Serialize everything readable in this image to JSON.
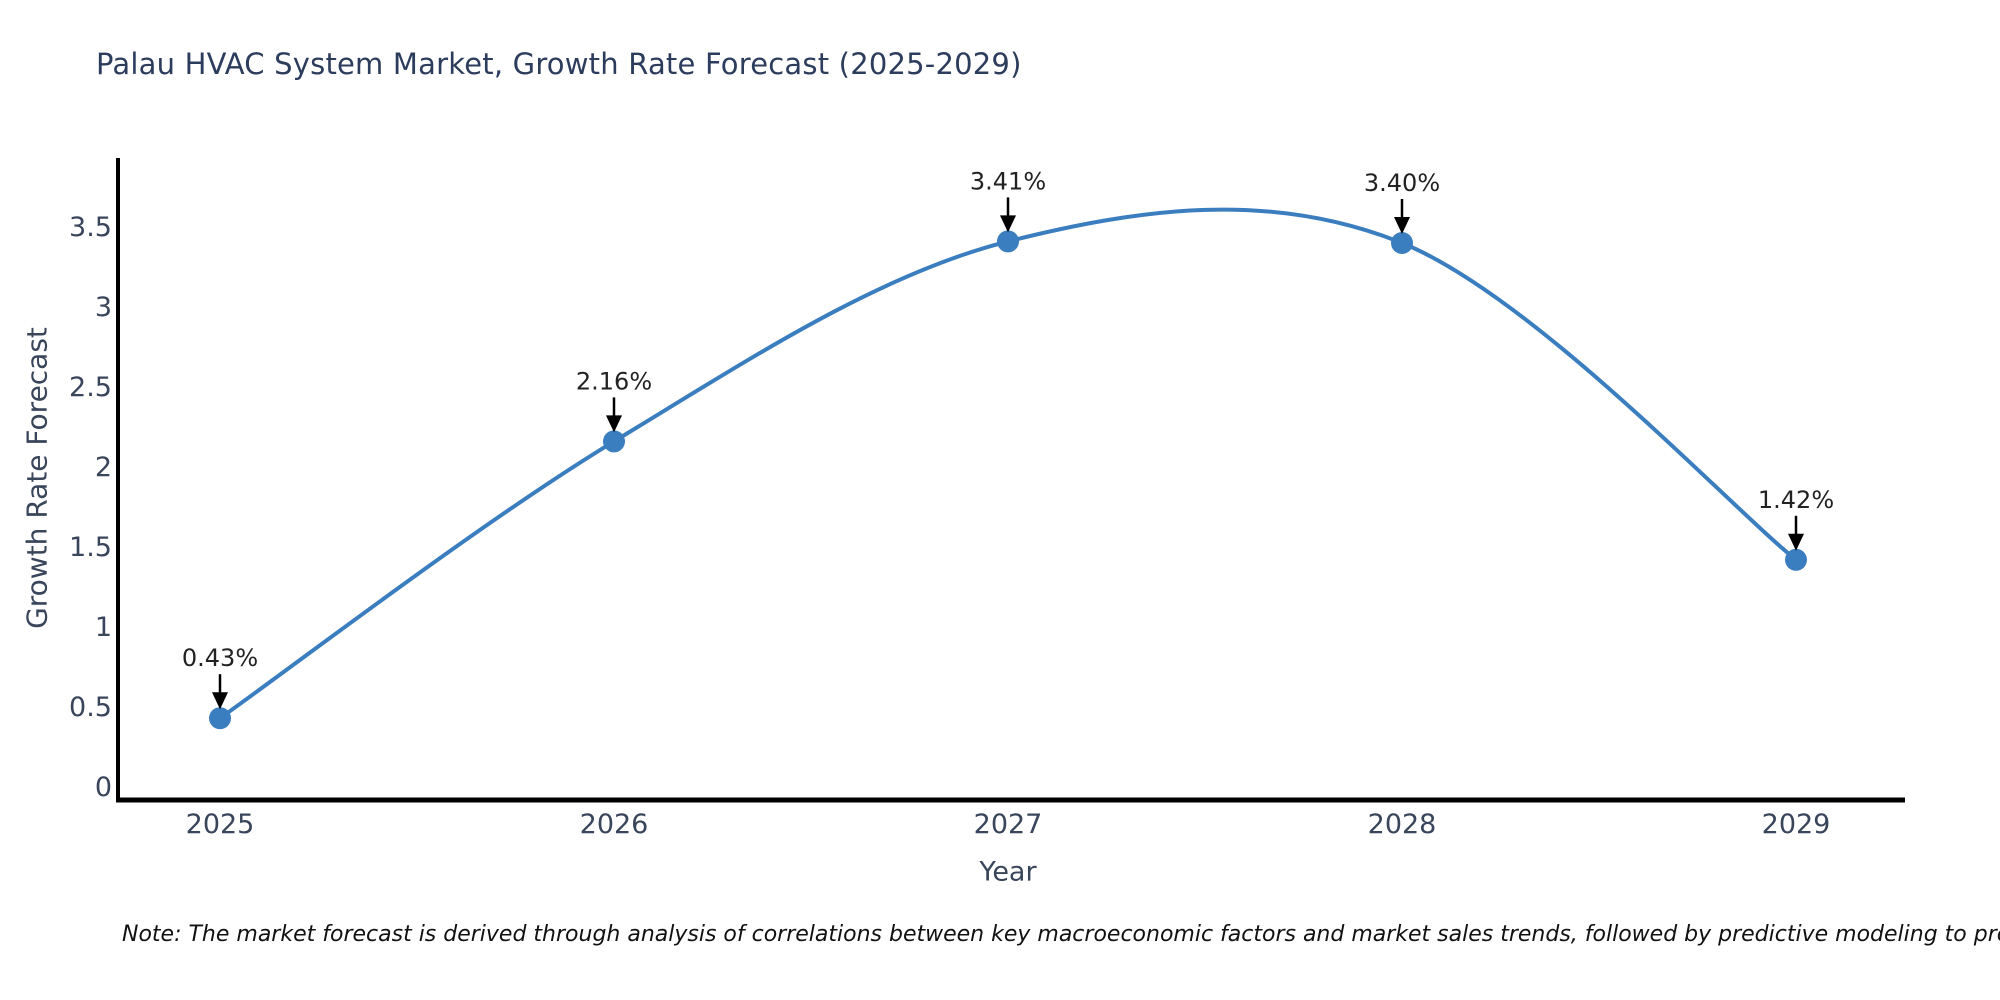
{
  "title": "Palau HVAC System Market, Growth Rate Forecast (2025-2029)",
  "note": "Note: The market forecast is derived through analysis of correlations between key macroeconomic factors and market sales trends, followed by predictive modeling to project future sales",
  "chart_data": {
    "type": "line",
    "line_shape": "spline",
    "title": "Palau HVAC System Market, Growth Rate Forecast (2025-2029)",
    "xlabel": "Year",
    "ylabel": "Growth Rate Forecast",
    "categories": [
      "2025",
      "2026",
      "2027",
      "2028",
      "2029"
    ],
    "values": [
      0.43,
      2.16,
      3.41,
      3.4,
      1.42
    ],
    "point_labels": [
      "0.43%",
      "2.16%",
      "3.41%",
      "3.40%",
      "1.42%"
    ],
    "yticks": [
      0,
      0.5,
      1,
      1.5,
      2,
      2.5,
      3,
      3.5
    ],
    "ytick_labels": [
      "0",
      "0.5",
      "1",
      "1.5",
      "2",
      "2.5",
      "3",
      "3.5"
    ],
    "ylim": [
      0,
      3.7
    ],
    "grid": false,
    "legend": "none",
    "colors": {
      "line": "#3a7ebf",
      "marker": "#3a7ebf",
      "axis_line": "#000000",
      "tick_text": "#39455a",
      "annotation_text": "#222222",
      "annotation_arrow": "#000000",
      "title_text": "#2c3c5c"
    }
  }
}
